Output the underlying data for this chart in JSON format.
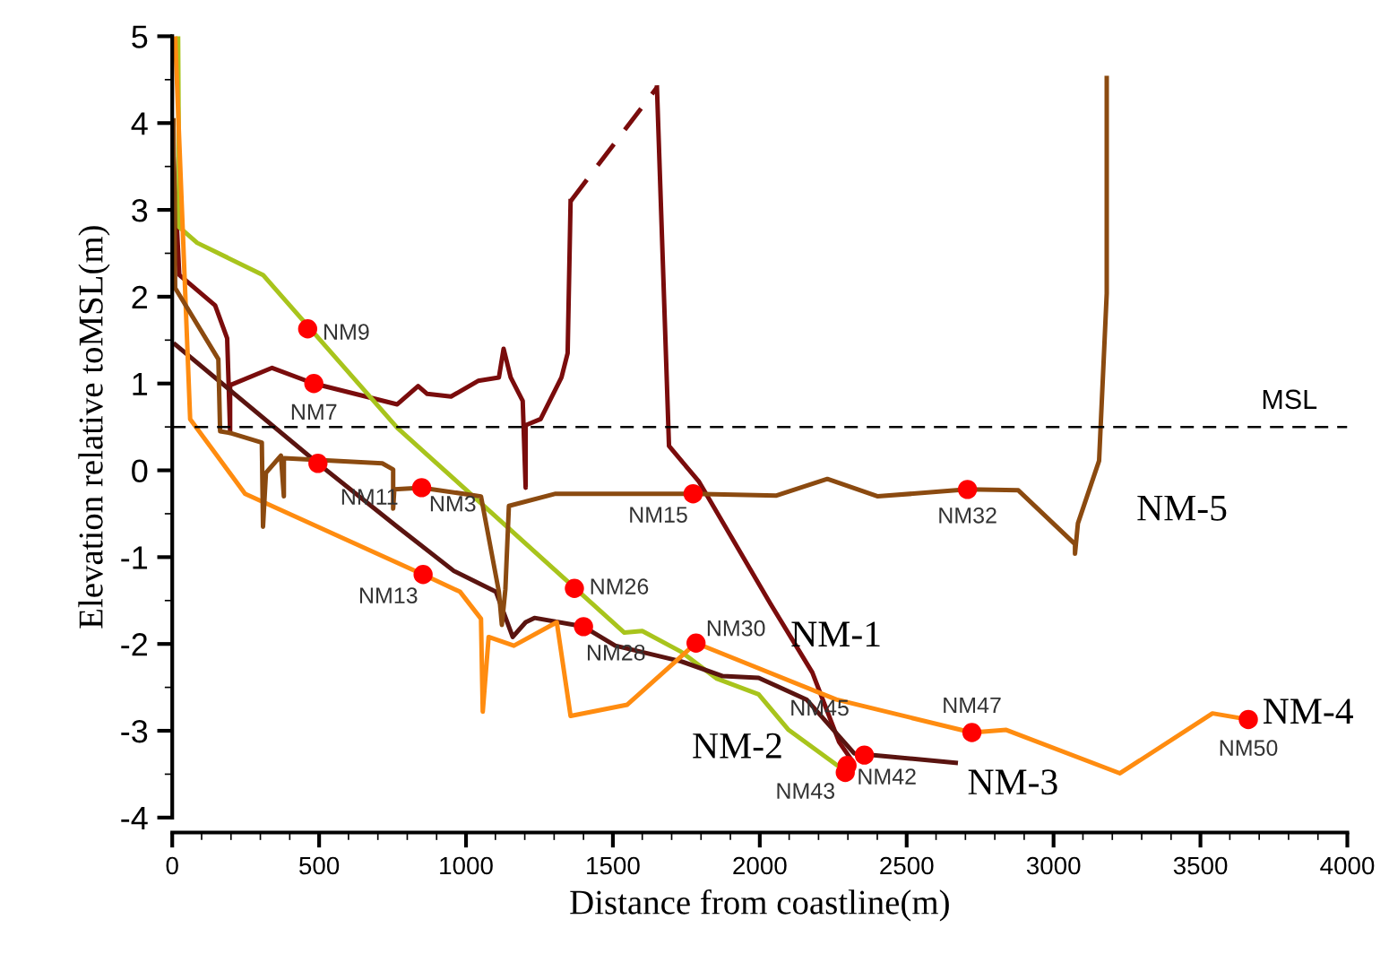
{
  "chart_data": {
    "type": "line",
    "xlabel": "Distance from coastline(m)",
    "ylabel": "Elevation relative toMSL(m)",
    "xlim": [
      0,
      4000
    ],
    "xticks": [
      0,
      500,
      1000,
      1500,
      2000,
      2500,
      3000,
      3500,
      4000
    ],
    "ylim": [
      -4,
      5
    ],
    "yticks": [
      -4,
      -3,
      -2,
      -1,
      0,
      1,
      2,
      3,
      4,
      5
    ],
    "grid": false,
    "legend": false,
    "marker": "none",
    "series": [
      {
        "color": "#7a0c0c",
        "line_style": "solid",
        "x": [
          4,
          24,
          146,
          187,
          197,
          197,
          340,
          482,
          766,
          837,
          868,
          949,
          1041,
          1112,
          1128,
          1152,
          1193,
          1203,
          1203,
          1254,
          1325,
          1346,
          1356
        ],
        "values": [
          3.62,
          2.25,
          1.9,
          1.52,
          0.45,
          0.98,
          1.18,
          1.0,
          0.76,
          0.97,
          0.88,
          0.85,
          1.03,
          1.07,
          1.4,
          1.07,
          0.8,
          -0.2,
          0.52,
          0.59,
          1.07,
          1.35,
          3.1
        ]
      },
      {
        "color": "#7a0c0c",
        "line_style": "dashed",
        "x": [
          1356,
          1650
        ],
        "values": [
          3.1,
          4.41
        ]
      },
      {
        "name": "NM-1",
        "color": "#7a0c0c",
        "line_style": "solid",
        "x": [
          1650,
          1691,
          1793,
          2037,
          2179,
          2270,
          2311
        ],
        "values": [
          4.41,
          0.28,
          -0.13,
          -1.54,
          -2.33,
          -3.13,
          -3.33
        ]
      },
      {
        "name": "NM-2",
        "color": "#a8c41c",
        "line_style": "solid",
        "x": [
          20,
          24,
          85,
          309,
          766,
          1539,
          1600,
          1732,
          1854,
          1996,
          2098,
          2280
        ],
        "values": [
          5,
          2.8,
          2.62,
          2.25,
          0.49,
          -1.87,
          -1.85,
          -2.09,
          -2.4,
          -2.58,
          -2.99,
          -3.44
        ]
      },
      {
        "name": "NM-3",
        "color": "#5a1410",
        "line_style": "solid",
        "x": [
          10,
          496,
          766,
          959,
          1102,
          1159,
          1203,
          1233,
          1400,
          1508,
          1732,
          1874,
          1996,
          2159,
          2321,
          2667
        ],
        "values": [
          1.45,
          0.08,
          -0.65,
          -1.16,
          -1.4,
          -1.92,
          -1.75,
          -1.7,
          -1.8,
          -2.02,
          -2.2,
          -2.37,
          -2.39,
          -2.64,
          -3.26,
          -3.37
        ]
      },
      {
        "name": "NM-4",
        "color": "#ff8c10",
        "line_style": "solid",
        "x": [
          10,
          61,
          248,
          854,
          980,
          1051,
          1057,
          1077,
          1163,
          1309,
          1356,
          1549,
          1783,
          2260,
          2722,
          2839,
          3226,
          3541,
          3663
        ],
        "values": [
          5,
          0.59,
          -0.27,
          -1.2,
          -1.4,
          -1.71,
          -2.78,
          -1.92,
          -2.02,
          -1.75,
          -2.83,
          -2.7,
          -1.99,
          -2.64,
          -3.02,
          -2.99,
          -3.49,
          -2.8,
          -2.87
        ]
      },
      {
        "name": "NM-5",
        "color": "#8b4a10",
        "line_style": "solid",
        "x": [
          4,
          10,
          157,
          163,
          197,
          305,
          309,
          319,
          370,
          380,
          380,
          715,
          752,
          752,
          756,
          849,
          1051,
          1112,
          1122,
          1134,
          1146,
          1305,
          1773,
          2057,
          2230,
          2402,
          2707,
          2880,
          3073,
          3073,
          3083,
          3155,
          3181,
          3181
        ],
        "values": [
          4.03,
          2.1,
          1.28,
          0.45,
          0.43,
          0.32,
          -0.65,
          -0.03,
          0.17,
          -0.3,
          0.14,
          0.08,
          0.01,
          -0.44,
          -0.22,
          -0.2,
          -0.3,
          -1.4,
          -1.78,
          -1.37,
          -0.41,
          -0.27,
          -0.27,
          -0.29,
          -0.1,
          -0.3,
          -0.22,
          -0.23,
          -0.85,
          -0.96,
          -0.61,
          0.11,
          2.04,
          4.52
        ]
      },
      {
        "type": "scatter",
        "color": "#ff0000",
        "marker": "circle",
        "x": [
          461,
          482,
          496,
          849,
          854,
          1369,
          1400,
          1773,
          1783,
          2707,
          2722,
          2356,
          2297,
          2291,
          3663
        ],
        "values": [
          1.63,
          1.0,
          0.08,
          -0.2,
          -1.2,
          -1.36,
          -1.8,
          -0.27,
          -1.99,
          -0.22,
          -3.02,
          -3.28,
          -3.4,
          -3.48,
          -2.87
        ],
        "value_labels": [
          "NM9",
          "NM7",
          "NM11",
          "NM3",
          "NM13",
          "NM26",
          "NM28",
          "NM15",
          "NM30",
          "NM32",
          "NM47",
          "NM45",
          "NM42",
          "NM43",
          "NM50"
        ]
      }
    ],
    "ref_lines": [
      {
        "axis": "y",
        "value": 0.5,
        "label": "MSL",
        "color": "#000000",
        "line_style": "dashed"
      }
    ]
  }
}
